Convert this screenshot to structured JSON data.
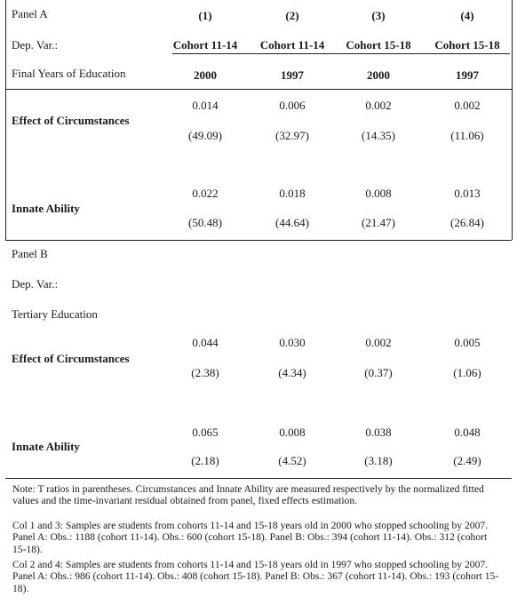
{
  "panel_a": {
    "label": "Panel A",
    "columns": [
      "(1)",
      "(2)",
      "(3)",
      "(4)"
    ],
    "dep_var_label": "Dep. Var.:",
    "cohorts": [
      "Cohort 11-14",
      "Cohort 11-14",
      "Cohort 15-18",
      "Cohort 15-18"
    ],
    "depvar_name": "Final Years of Education",
    "years": [
      "2000",
      "1997",
      "2000",
      "1997"
    ],
    "rows": [
      {
        "label": "Effect of Circumstances",
        "coef": [
          "0.014",
          "0.006",
          "0.002",
          "0.002"
        ],
        "t": [
          "(49.09)",
          "(32.97)",
          "(14.35)",
          "(11.06)"
        ]
      },
      {
        "label": "Innate Ability",
        "coef": [
          "0.022",
          "0.018",
          "0.008",
          "0.013"
        ],
        "t": [
          "(50.48)",
          "(44.64)",
          "(21.47)",
          "(26.84)"
        ]
      }
    ]
  },
  "panel_b": {
    "label": "Panel B",
    "dep_var_label": "Dep. Var.:",
    "depvar_name": "Tertiary Education",
    "rows": [
      {
        "label": "Effect of Circumstances",
        "coef": [
          "0.044",
          "0.030",
          "0.002",
          "0.005"
        ],
        "t": [
          "(2.38)",
          "(4.34)",
          "(0.37)",
          "(1.06)"
        ]
      },
      {
        "label": "Innate Ability",
        "coef": [
          "0.065",
          "0.008",
          "0.038",
          "0.048"
        ],
        "t": [
          "(2.18)",
          "(4.52)",
          "(3.18)",
          "(2.49)"
        ]
      }
    ]
  },
  "notes": [
    "Note:  T ratios in parentheses. Circumstances and Innate Ability are measured respectively by the normalized fitted values and the time-invariant residual obtained from panel, fixed effects estimation.",
    "Col 1 and 3: Samples are students from cohorts 11-14 and 15-18 years old in 2000 who stopped schooling by 2007. Panel A: Obs.: 1188 (cohort 11-14).  Obs.: 600 (cohort 15-18). Panel B: Obs.: 394 (cohort 11-14).  Obs.: 312 (cohort 15-18).",
    "Col 2 and 4: Samples are students from cohorts 11-14 and 15-18 years old in 1997 who stopped schooling by 2007. Panel A: Obs.: 986 (cohort 11-14).  Obs.: 408 (cohort 15-18). Panel B: Obs.: 367 (cohort 11-14).  Obs.: 193 (cohort 15-18)."
  ]
}
